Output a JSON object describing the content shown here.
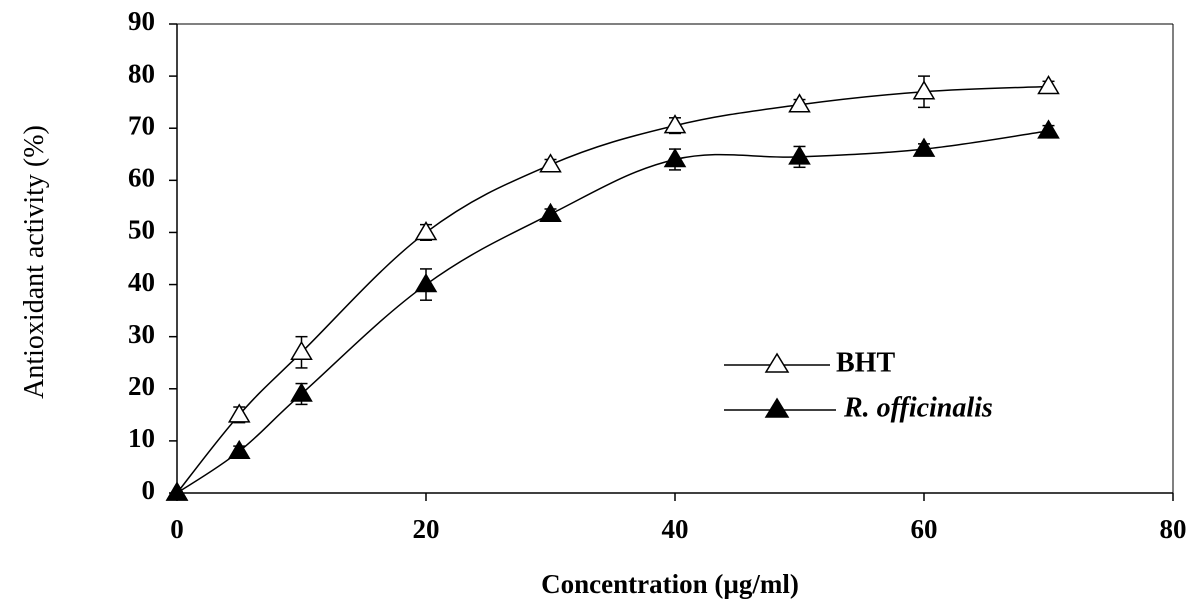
{
  "chart_data": {
    "type": "line",
    "title": "",
    "xlabel": "Concentration (µg/ml)",
    "ylabel": "Antioxidant activity (%)",
    "xlim": [
      0,
      80
    ],
    "ylim": [
      0,
      90
    ],
    "xticks": [
      "0",
      "20",
      "40",
      "60",
      "80"
    ],
    "yticks": [
      "0",
      "10",
      "20",
      "30",
      "40",
      "50",
      "60",
      "70",
      "80",
      "90"
    ],
    "grid": false,
    "legend_position": "right",
    "series": [
      {
        "name": "BHT",
        "marker": "open-triangle",
        "x": [
          0,
          5,
          10,
          20,
          30,
          40,
          50,
          60,
          70
        ],
        "y": [
          0,
          15,
          27,
          50,
          63,
          70.5,
          74.5,
          77,
          78
        ],
        "error": [
          0,
          1.5,
          3,
          1.5,
          1,
          1.5,
          1,
          3,
          1
        ]
      },
      {
        "name": "R. officinalis",
        "marker": "filled-triangle",
        "x": [
          0,
          5,
          10,
          20,
          30,
          40,
          50,
          60,
          70
        ],
        "y": [
          0,
          8,
          19,
          40,
          53.5,
          64,
          64.5,
          66,
          69.5
        ],
        "error": [
          0,
          1,
          2,
          3,
          1,
          2,
          2,
          1,
          1
        ]
      }
    ]
  }
}
